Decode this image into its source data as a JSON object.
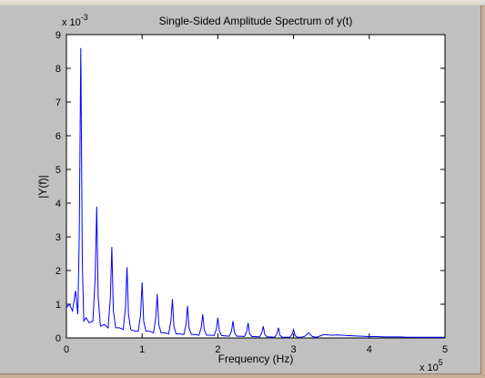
{
  "window": {
    "background_color": "#c0c0c0",
    "desktop_color": "#c8ad95"
  },
  "chart_data": {
    "type": "line",
    "title": "Single-Sided Amplitude Spectrum of y(t)",
    "xlabel": "Frequency (Hz)",
    "ylabel": "|Y(f)|",
    "x_multiplier": "x 10",
    "x_multiplier_exp": "5",
    "y_multiplier": "x 10",
    "y_multiplier_exp": "-3",
    "xlim": [
      0,
      5
    ],
    "ylim": [
      0,
      9
    ],
    "x_ticks": [
      "0",
      "1",
      "2",
      "3",
      "4",
      "5"
    ],
    "y_ticks": [
      "0",
      "1",
      "2",
      "3",
      "4",
      "5",
      "6",
      "7",
      "8",
      "9"
    ],
    "grid": false,
    "line_color": "#0000ff",
    "series": [
      {
        "x": [
          0,
          0.04,
          0.08,
          0.12,
          0.15,
          0.17,
          0.19,
          0.21,
          0.23,
          0.26,
          0.3,
          0.35,
          0.38,
          0.4,
          0.42,
          0.45,
          0.5,
          0.55,
          0.58,
          0.6,
          0.62,
          0.65,
          0.7,
          0.75,
          0.78,
          0.8,
          0.82,
          0.85,
          0.9,
          0.95,
          0.98,
          1.0,
          1.02,
          1.05,
          1.1,
          1.15,
          1.18,
          1.2,
          1.22,
          1.25,
          1.3,
          1.35,
          1.38,
          1.4,
          1.42,
          1.45,
          1.5,
          1.55,
          1.58,
          1.6,
          1.62,
          1.65,
          1.7,
          1.75,
          1.78,
          1.8,
          1.82,
          1.85,
          1.9,
          1.95,
          1.98,
          2.0,
          2.02,
          2.05,
          2.1,
          2.15,
          2.18,
          2.2,
          2.22,
          2.25,
          2.3,
          2.35,
          2.38,
          2.4,
          2.42,
          2.45,
          2.5,
          2.55,
          2.58,
          2.6,
          2.62,
          2.65,
          2.7,
          2.75,
          2.78,
          2.8,
          2.82,
          2.85,
          2.9,
          2.95,
          2.98,
          3.0,
          3.02,
          3.05,
          3.1,
          3.15,
          3.2,
          3.25,
          3.3,
          3.4,
          3.5,
          3.6,
          3.7,
          3.8,
          3.9,
          4.0,
          4.1,
          4.2,
          4.3,
          4.4,
          4.5,
          4.6,
          4.7,
          4.8,
          4.9,
          5.0
        ],
        "y": [
          0.9,
          1.0,
          0.8,
          1.4,
          0.7,
          3.0,
          8.6,
          2.2,
          0.5,
          0.6,
          0.45,
          0.5,
          1.8,
          3.9,
          1.2,
          0.35,
          0.4,
          0.3,
          1.2,
          2.7,
          0.8,
          0.3,
          0.3,
          0.25,
          0.9,
          2.1,
          0.7,
          0.25,
          0.2,
          0.2,
          0.7,
          1.65,
          0.5,
          0.2,
          0.2,
          0.15,
          0.6,
          1.3,
          0.4,
          0.15,
          0.15,
          0.12,
          0.5,
          1.15,
          0.35,
          0.12,
          0.12,
          0.1,
          0.4,
          0.95,
          0.3,
          0.1,
          0.1,
          0.08,
          0.3,
          0.7,
          0.25,
          0.08,
          0.08,
          0.07,
          0.25,
          0.6,
          0.2,
          0.07,
          0.06,
          0.05,
          0.2,
          0.5,
          0.15,
          0.05,
          0.05,
          0.04,
          0.18,
          0.45,
          0.12,
          0.04,
          0.04,
          0.03,
          0.15,
          0.35,
          0.1,
          0.03,
          0.03,
          0.02,
          0.12,
          0.3,
          0.08,
          0.02,
          0.02,
          0.02,
          0.1,
          0.25,
          0.07,
          0.02,
          0.02,
          0.05,
          0.15,
          0.04,
          0.02,
          0.1,
          0.08,
          0.09,
          0.07,
          0.06,
          0.05,
          0.04,
          0.04,
          0.03,
          0.03,
          0.03,
          0.02,
          0.02,
          0.02,
          0.02,
          0.02,
          0.02
        ]
      }
    ]
  }
}
